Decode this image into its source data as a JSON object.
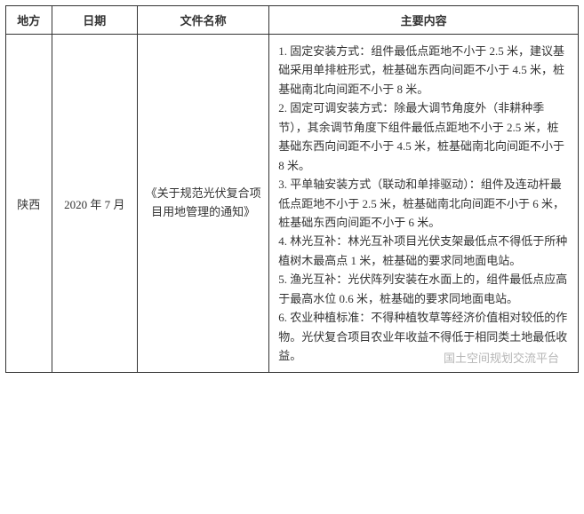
{
  "table": {
    "columns": [
      {
        "key": "region",
        "label": "地方"
      },
      {
        "key": "date",
        "label": "日期"
      },
      {
        "key": "docname",
        "label": "文件名称"
      },
      {
        "key": "content",
        "label": "主要内容"
      }
    ],
    "rows": [
      {
        "region": "陕西",
        "date": "2020 年 7 月",
        "docname": "《关于规范光伏复合项目用地管理的通知》",
        "content": "1. 固定安装方式：组件最低点距地不小于 2.5 米，建议基础采用单排桩形式，桩基础东西向间距不小于 4.5 米，桩基础南北向间距不小于 8 米。\n2. 固定可调安装方式：除最大调节角度外（非耕种季节），其余调节角度下组件最低点距地不小于 2.5 米，桩基础东西向间距不小于 4.5 米，桩基础南北向间距不小于 8 米。\n3. 平单轴安装方式（联动和单排驱动）：组件及连动杆最低点距地不小于 2.5 米，桩基础南北向间距不小于 6 米，桩基础东西向间距不小于 6 米。\n4. 林光互补：林光互补项目光伏支架最低点不得低于所种植树木最高点 1 米，桩基础的要求同地面电站。\n5. 渔光互补：光伏阵列安装在水面上的，组件最低点应高于最高水位 0.6 米，桩基础的要求同地面电站。\n6. 农业种植标准：不得种植牧草等经济价值相对较低的作物。光伏复合项目农业年收益不得低于相同类土地最低收益。"
      }
    ]
  },
  "watermark": "国土空间规划交流平台",
  "style": {
    "border_color": "#333333",
    "font_family": "SimSun",
    "base_font_size_pt": 10,
    "line_height": 1.65,
    "background_color": "#ffffff",
    "text_color": "#333333",
    "watermark_color": "rgba(120,120,120,0.55)",
    "col_widths_pct": [
      8,
      15,
      23,
      54
    ]
  }
}
